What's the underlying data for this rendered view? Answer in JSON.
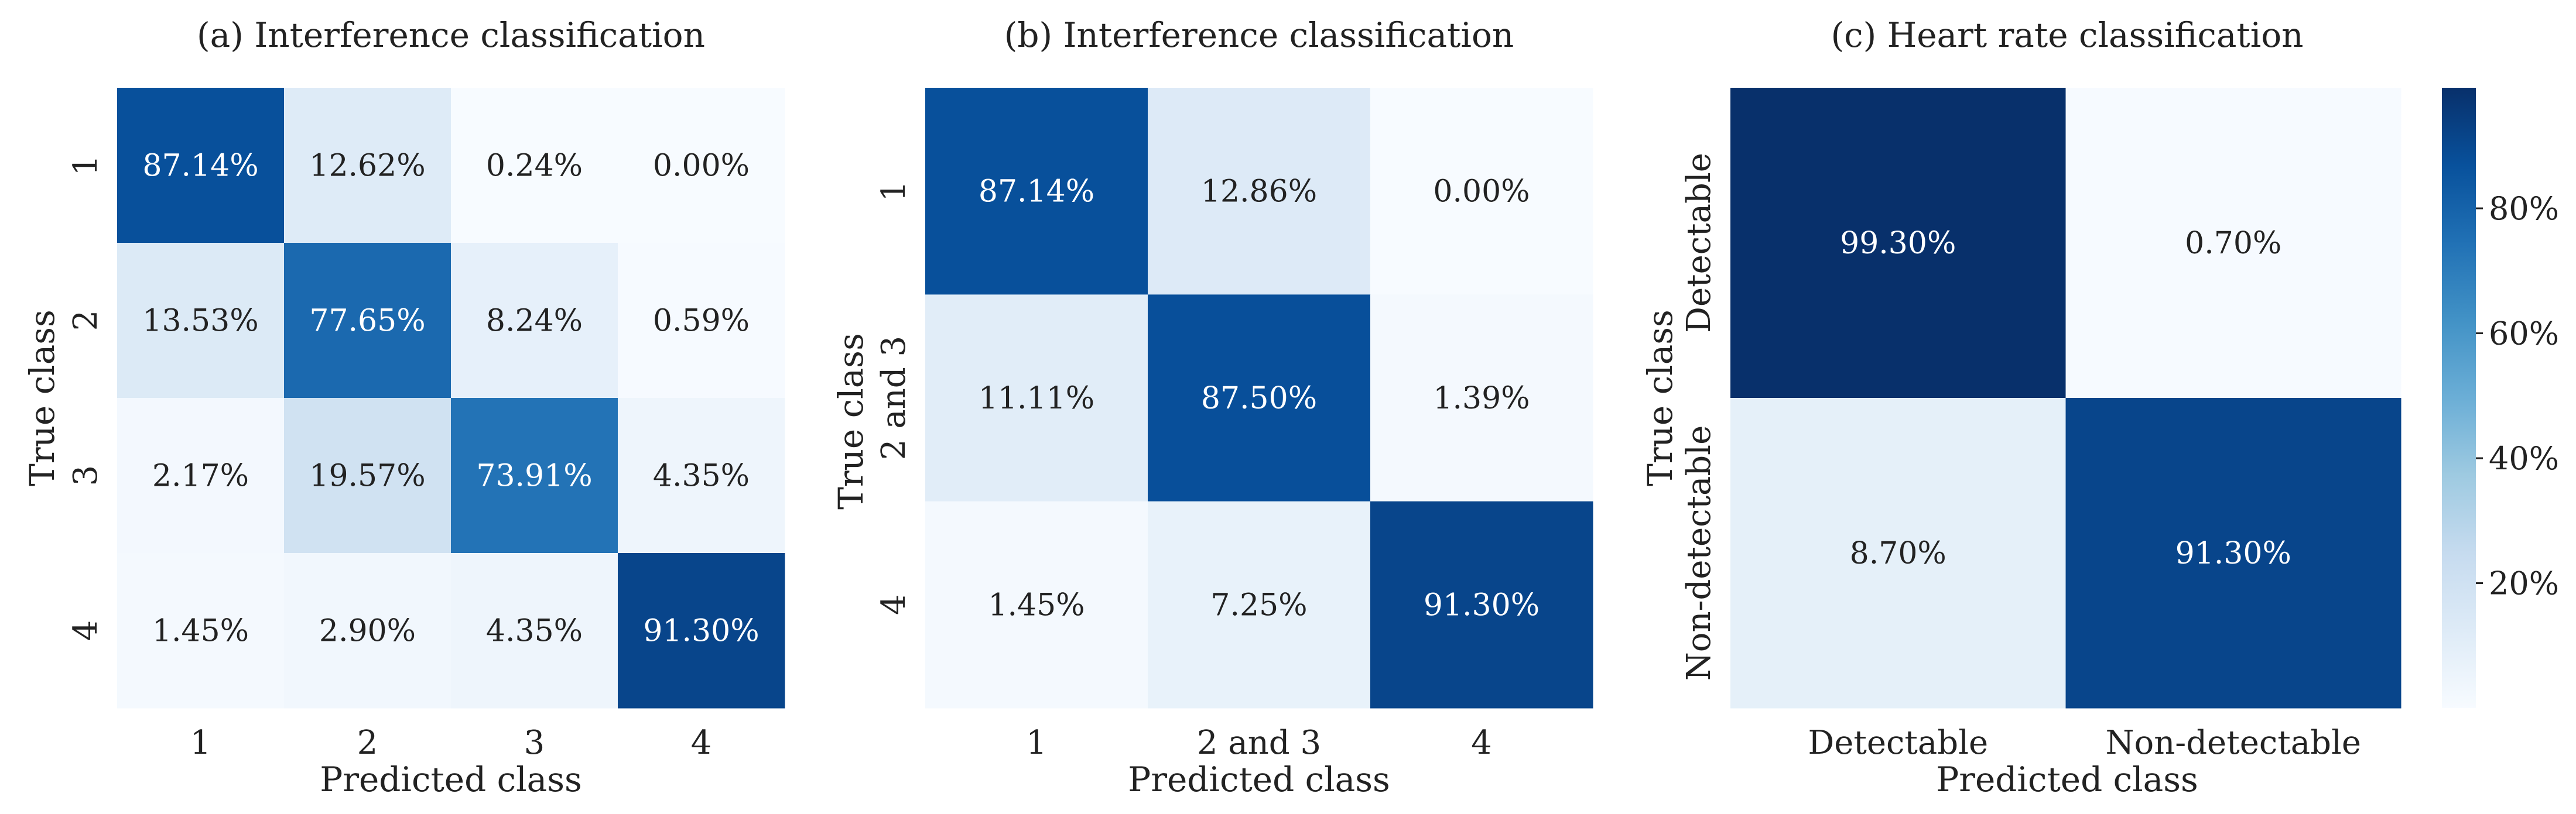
{
  "chart_data": [
    {
      "type": "heatmap",
      "title": "(a) Interference classification",
      "xlabel": "Predicted class",
      "ylabel": "True class",
      "x_categories": [
        "1",
        "2",
        "3",
        "4"
      ],
      "y_categories": [
        "1",
        "2",
        "3",
        "4"
      ],
      "values": [
        [
          87.14,
          12.62,
          0.24,
          0.0
        ],
        [
          13.53,
          77.65,
          8.24,
          0.59
        ],
        [
          2.17,
          19.57,
          73.91,
          4.35
        ],
        [
          1.45,
          2.9,
          4.35,
          91.3
        ]
      ],
      "value_format": "percent_2dp"
    },
    {
      "type": "heatmap",
      "title": "(b) Interference classification",
      "xlabel": "Predicted class",
      "ylabel": "True class",
      "x_categories": [
        "1",
        "2 and 3",
        "4"
      ],
      "y_categories": [
        "1",
        "2 and 3",
        "4"
      ],
      "values": [
        [
          87.14,
          12.86,
          0.0
        ],
        [
          11.11,
          87.5,
          1.39
        ],
        [
          1.45,
          7.25,
          91.3
        ]
      ],
      "value_format": "percent_2dp"
    },
    {
      "type": "heatmap",
      "title": "(c) Heart rate classification",
      "xlabel": "Predicted class",
      "ylabel": "True class",
      "x_categories": [
        "Detectable",
        "Non-detectable"
      ],
      "y_categories": [
        "Detectable",
        "Non-detectable"
      ],
      "values": [
        [
          99.3,
          0.7
        ],
        [
          8.7,
          91.3
        ]
      ],
      "value_format": "percent_2dp"
    }
  ],
  "colorbar": {
    "colormap": "Blues",
    "range": [
      0,
      99.3
    ],
    "ticks": [
      {
        "value": 20,
        "label": "20%"
      },
      {
        "value": 40,
        "label": "40%"
      },
      {
        "value": 60,
        "label": "60%"
      },
      {
        "value": 80,
        "label": "80%"
      }
    ]
  },
  "colors": {
    "blues_stops": [
      "#f7fbff",
      "#deebf7",
      "#c6dbef",
      "#9ecae1",
      "#6baed6",
      "#4292c6",
      "#2171b5",
      "#08519c",
      "#08306b"
    ],
    "text_dark": "#222222",
    "text_light": "#ffffff"
  }
}
